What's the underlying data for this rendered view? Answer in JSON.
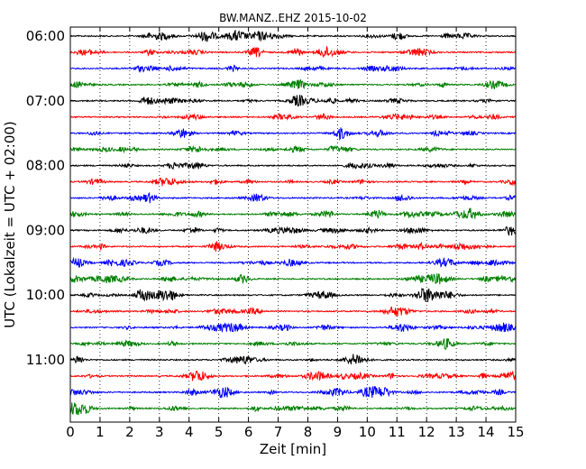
{
  "chart_data": {
    "type": "line",
    "title": "BW.MANZ..EHZ 2015-10-02",
    "xlabel": "Zeit  [min]",
    "ylabel": "UTC (Lokalzeit = UTC + 02:00)",
    "xlim": [
      0,
      15
    ],
    "x_ticks": [
      "0",
      "1",
      "2",
      "3",
      "4",
      "5",
      "6",
      "7",
      "8",
      "9",
      "10",
      "11",
      "12",
      "13",
      "14",
      "15"
    ],
    "y_ticks": [
      "06:00",
      "07:00",
      "08:00",
      "09:00",
      "10:00",
      "11:00"
    ],
    "grid": "vertical dotted",
    "legend": "none",
    "trace_interval_min": 15,
    "start_time": "06:00",
    "trace_count": 24,
    "trace_colors": [
      "#000000",
      "#ff0000",
      "#0000ff",
      "#008000"
    ]
  }
}
